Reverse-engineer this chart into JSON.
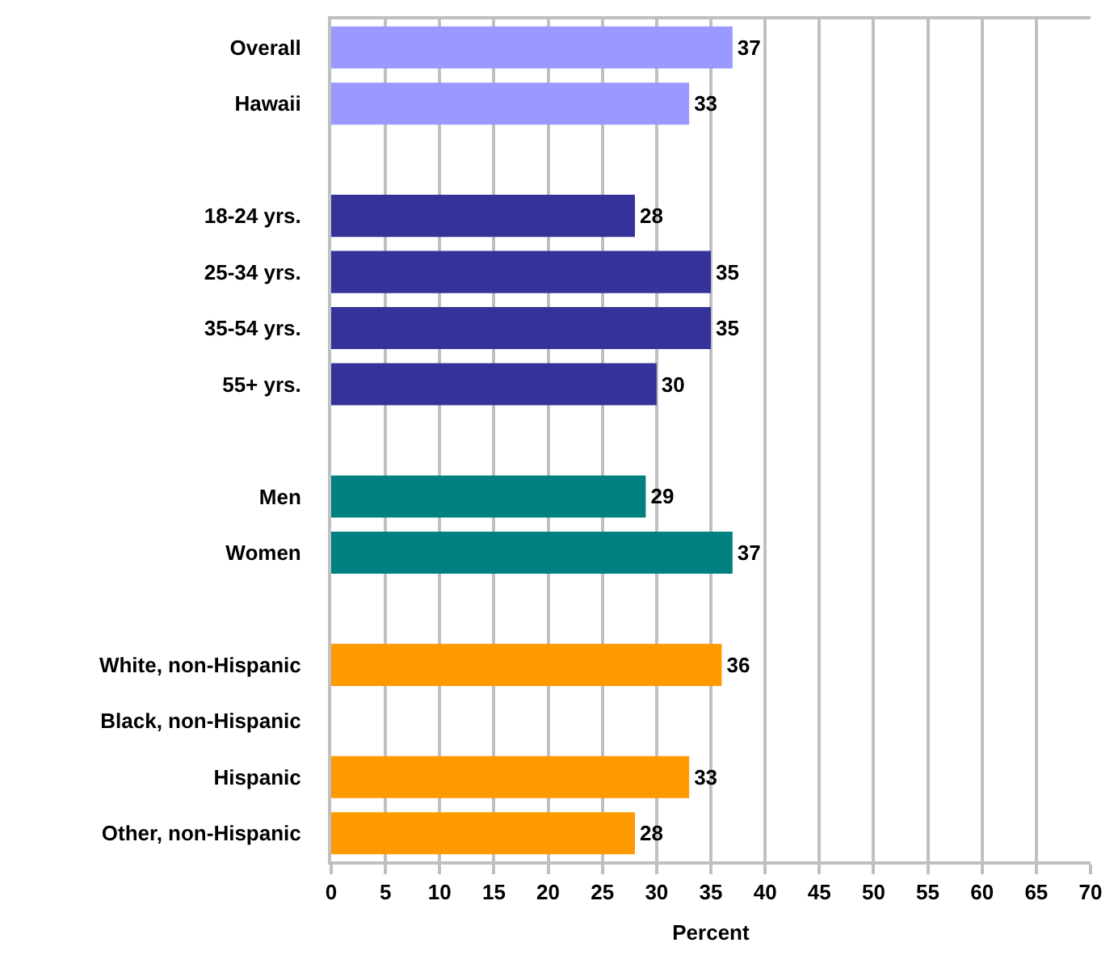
{
  "chart_data": {
    "type": "bar",
    "orientation": "horizontal",
    "xlabel": "Percent",
    "categories": [
      "Overall",
      "Hawaii",
      null,
      "18-24 yrs.",
      "25-34 yrs.",
      "35-54 yrs.",
      "55+ yrs.",
      null,
      "Men",
      "Women",
      null,
      "White, non-Hispanic",
      "Black, non-Hispanic",
      "Hispanic",
      "Other, non-Hispanic"
    ],
    "values": [
      37,
      33,
      null,
      28,
      35,
      35,
      30,
      null,
      29,
      37,
      null,
      36,
      null,
      33,
      28
    ],
    "colors": [
      "#9999ff",
      "#9999ff",
      null,
      "#333399",
      "#333399",
      "#333399",
      "#333399",
      null,
      "#008080",
      "#008080",
      null,
      "#ff9900",
      null,
      "#ff9900",
      "#ff9900"
    ],
    "xlim": [
      0,
      70
    ],
    "xticks": [
      0,
      5,
      10,
      15,
      20,
      25,
      30,
      35,
      40,
      45,
      50,
      55,
      60,
      65,
      70
    ],
    "grid": "x",
    "data_labels": true
  }
}
